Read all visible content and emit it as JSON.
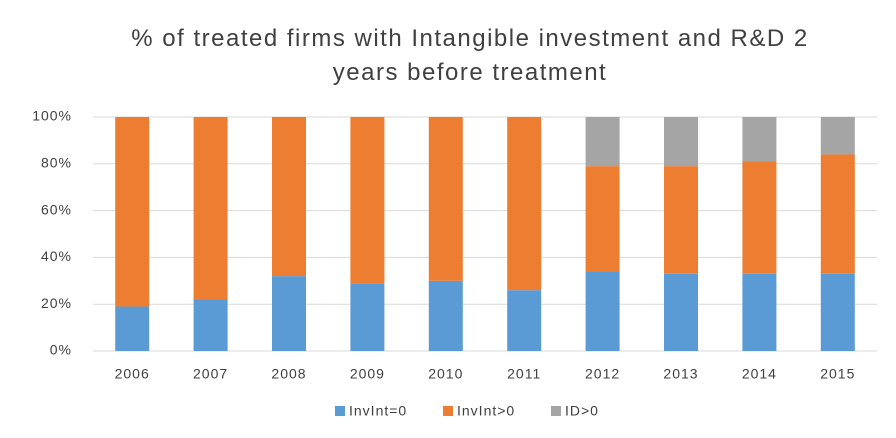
{
  "chart_data": {
    "type": "bar",
    "stacked": true,
    "title": "% of treated firms with Intangible investment and R&D 2 years before treatment",
    "categories": [
      "2006",
      "2007",
      "2008",
      "2009",
      "2010",
      "2011",
      "2012",
      "2013",
      "2014",
      "2015"
    ],
    "series": [
      {
        "name": "InvInt=0",
        "color": "#5b9bd5",
        "values": [
          19,
          22,
          32,
          29,
          30,
          26,
          34,
          33,
          33,
          33
        ]
      },
      {
        "name": "InvInt>0",
        "color": "#ed7d31",
        "values": [
          81,
          78,
          68,
          71,
          70,
          74,
          45,
          46,
          48,
          51
        ]
      },
      {
        "name": "ID>0",
        "color": "#a5a5a5",
        "values": [
          0,
          0,
          0,
          0,
          0,
          0,
          21,
          21,
          19,
          16
        ]
      }
    ],
    "ylim": [
      0,
      100
    ],
    "yticks": [
      {
        "value": 0,
        "label": "0%"
      },
      {
        "value": 20,
        "label": "20%"
      },
      {
        "value": 40,
        "label": "40%"
      },
      {
        "value": 60,
        "label": "60%"
      },
      {
        "value": 80,
        "label": "80%"
      },
      {
        "value": 100,
        "label": "100%"
      }
    ],
    "grid": true,
    "legend": "bottom"
  }
}
